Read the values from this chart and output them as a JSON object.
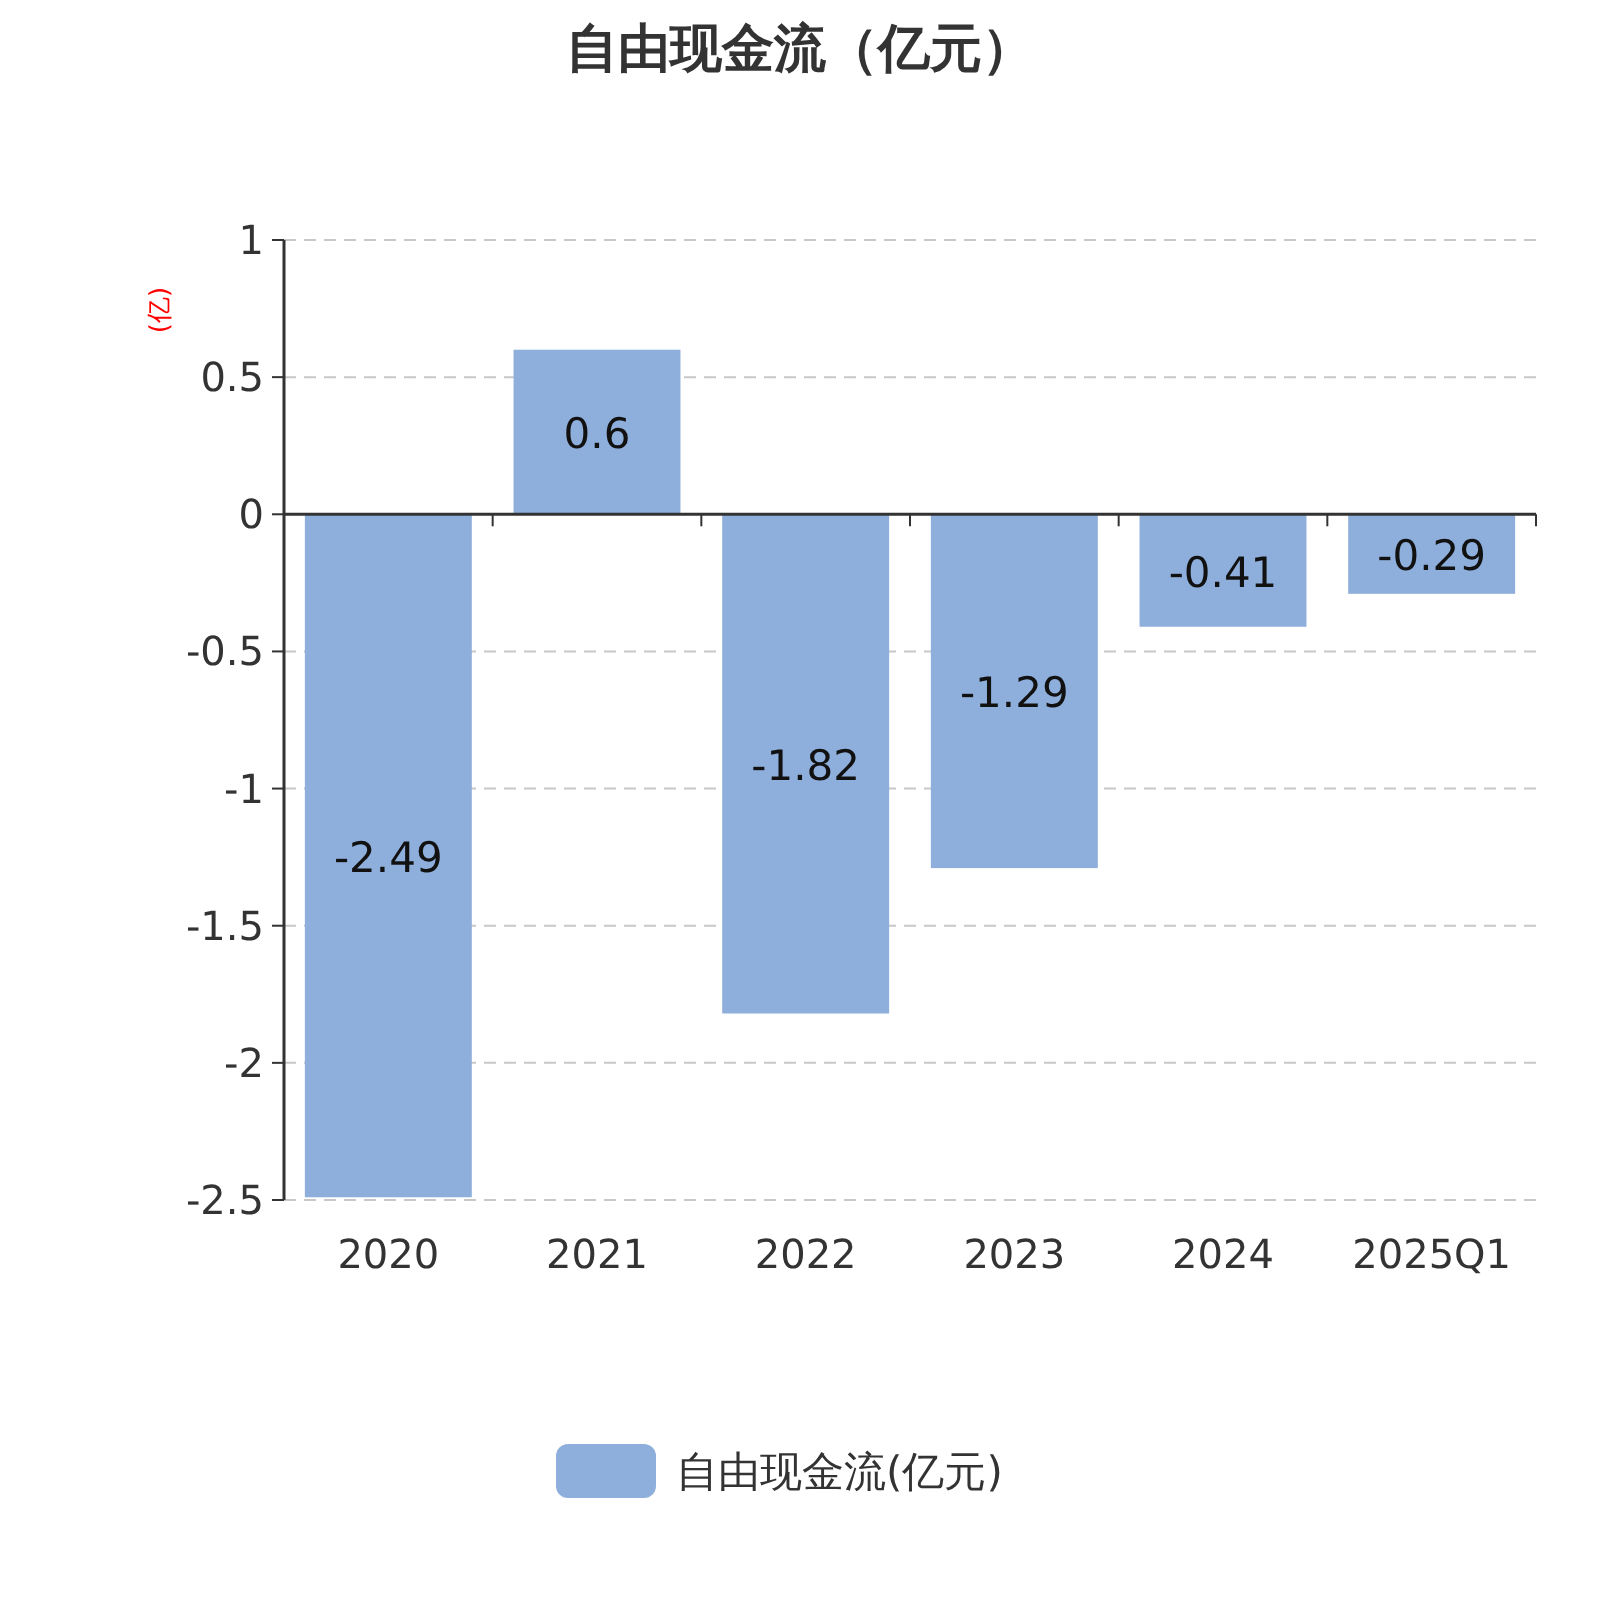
{
  "chart_data": {
    "type": "bar",
    "title": "自由现金流（亿元）",
    "ylabel": "(亿)",
    "categories": [
      "2020",
      "2021",
      "2022",
      "2023",
      "2024",
      "2025Q1"
    ],
    "series": [
      {
        "name": "自由现金流(亿元)",
        "color": "#8eaedb",
        "values": [
          -2.49,
          0.6,
          -1.82,
          -1.29,
          -0.41,
          -0.29
        ]
      }
    ],
    "ylim": [
      -2.5,
      1
    ],
    "yticks": [
      -2.5,
      -2,
      -1.5,
      -1,
      -0.5,
      0,
      0.5,
      1
    ],
    "grid": "y",
    "legend": "bottom",
    "data_labels": true
  }
}
